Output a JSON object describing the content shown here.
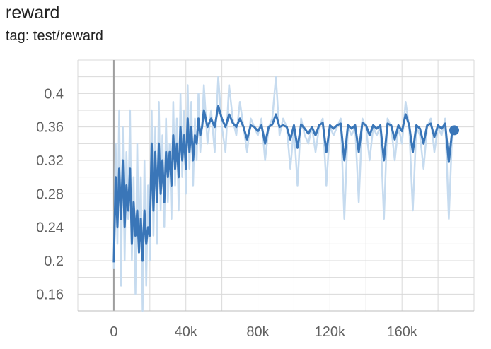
{
  "header": {
    "title": "reward",
    "tag": "tag: test/reward"
  },
  "chart_data": {
    "type": "line",
    "title": "reward",
    "subtitle": "tag: test/reward",
    "xlabel": "",
    "ylabel": "",
    "xlim": [
      -20000,
      200000
    ],
    "ylim": [
      0.14,
      0.44
    ],
    "x_ticks": [
      0,
      40000,
      80000,
      120000,
      160000
    ],
    "x_tick_labels": [
      "0",
      "40k",
      "80k",
      "120k",
      "160k"
    ],
    "y_ticks": [
      0.16,
      0.2,
      0.24,
      0.28,
      0.32,
      0.36,
      0.4
    ],
    "y_tick_labels": [
      "0.16",
      "0.2",
      "0.24",
      "0.28",
      "0.32",
      "0.36",
      "0.4"
    ],
    "grid": true,
    "colors": {
      "smoothed": "#3a76b8",
      "raw": "#c6dbef",
      "grid": "#d9d9d9",
      "zero_line": "#9e9e9e"
    },
    "series": [
      {
        "role": "raw",
        "x": [
          0,
          1000,
          2000,
          3000,
          4000,
          5000,
          6000,
          7000,
          8000,
          9000,
          10000,
          11000,
          12000,
          13000,
          14000,
          15000,
          16000,
          17000,
          18000,
          19000,
          20000,
          21000,
          22000,
          23000,
          24000,
          25000,
          26000,
          27000,
          28000,
          29000,
          30000,
          31000,
          32000,
          33000,
          34000,
          35000,
          36000,
          37000,
          38000,
          39000,
          40000,
          41000,
          42000,
          43000,
          44000,
          45000,
          46000,
          47000,
          48000,
          49000,
          50000,
          52000,
          54000,
          56000,
          58000,
          60000,
          62000,
          64000,
          66000,
          68000,
          70000,
          72000,
          74000,
          76000,
          78000,
          80000,
          82000,
          84000,
          86000,
          88000,
          90000,
          92000,
          94000,
          96000,
          98000,
          100000,
          102000,
          104000,
          106000,
          108000,
          110000,
          112000,
          114000,
          116000,
          118000,
          120000,
          122000,
          124000,
          126000,
          128000,
          130000,
          132000,
          134000,
          136000,
          138000,
          140000,
          142000,
          144000,
          146000,
          148000,
          150000,
          152000,
          154000,
          156000,
          158000,
          160000,
          162000,
          164000,
          166000,
          168000,
          170000,
          172000,
          174000,
          176000,
          178000,
          180000,
          182000,
          184000,
          186000,
          188000,
          189000
        ],
        "y": [
          0.19,
          0.34,
          0.22,
          0.38,
          0.17,
          0.36,
          0.2,
          0.33,
          0.25,
          0.38,
          0.2,
          0.3,
          0.16,
          0.34,
          0.21,
          0.3,
          0.14,
          0.32,
          0.17,
          0.29,
          0.2,
          0.38,
          0.23,
          0.36,
          0.22,
          0.39,
          0.26,
          0.35,
          0.24,
          0.37,
          0.27,
          0.34,
          0.25,
          0.39,
          0.29,
          0.37,
          0.26,
          0.4,
          0.3,
          0.38,
          0.28,
          0.41,
          0.31,
          0.39,
          0.29,
          0.37,
          0.32,
          0.4,
          0.33,
          0.36,
          0.41,
          0.34,
          0.38,
          0.33,
          0.42,
          0.36,
          0.33,
          0.41,
          0.37,
          0.35,
          0.39,
          0.36,
          0.33,
          0.37,
          0.36,
          0.35,
          0.37,
          0.32,
          0.36,
          0.37,
          0.42,
          0.35,
          0.37,
          0.36,
          0.31,
          0.36,
          0.29,
          0.37,
          0.35,
          0.34,
          0.36,
          0.33,
          0.36,
          0.37,
          0.29,
          0.36,
          0.35,
          0.36,
          0.37,
          0.25,
          0.36,
          0.35,
          0.36,
          0.27,
          0.37,
          0.36,
          0.32,
          0.36,
          0.35,
          0.36,
          0.25,
          0.37,
          0.36,
          0.32,
          0.36,
          0.34,
          0.39,
          0.36,
          0.26,
          0.36,
          0.35,
          0.31,
          0.36,
          0.37,
          0.33,
          0.36,
          0.35,
          0.37,
          0.25,
          0.36,
          0.36
        ]
      },
      {
        "role": "smoothed",
        "x": [
          0,
          1000,
          2000,
          3000,
          4000,
          5000,
          6000,
          7000,
          8000,
          9000,
          10000,
          11000,
          12000,
          13000,
          14000,
          15000,
          16000,
          17000,
          18000,
          19000,
          20000,
          21000,
          22000,
          23000,
          24000,
          25000,
          26000,
          27000,
          28000,
          29000,
          30000,
          31000,
          32000,
          33000,
          34000,
          35000,
          36000,
          37000,
          38000,
          39000,
          40000,
          41000,
          42000,
          43000,
          44000,
          45000,
          46000,
          47000,
          48000,
          49000,
          50000,
          52000,
          54000,
          56000,
          58000,
          60000,
          62000,
          64000,
          66000,
          68000,
          70000,
          72000,
          74000,
          76000,
          78000,
          80000,
          82000,
          84000,
          86000,
          88000,
          90000,
          92000,
          94000,
          96000,
          98000,
          100000,
          102000,
          104000,
          106000,
          108000,
          110000,
          112000,
          114000,
          116000,
          118000,
          120000,
          122000,
          124000,
          126000,
          128000,
          130000,
          132000,
          134000,
          136000,
          138000,
          140000,
          142000,
          144000,
          146000,
          148000,
          150000,
          152000,
          154000,
          156000,
          158000,
          160000,
          162000,
          164000,
          166000,
          168000,
          170000,
          172000,
          174000,
          176000,
          178000,
          180000,
          182000,
          184000,
          186000,
          188000,
          189000
        ],
        "y": [
          0.198,
          0.3,
          0.24,
          0.31,
          0.25,
          0.32,
          0.24,
          0.29,
          0.26,
          0.31,
          0.22,
          0.27,
          0.23,
          0.26,
          0.21,
          0.25,
          0.2,
          0.26,
          0.22,
          0.24,
          0.23,
          0.34,
          0.26,
          0.33,
          0.27,
          0.34,
          0.28,
          0.32,
          0.27,
          0.33,
          0.3,
          0.33,
          0.29,
          0.35,
          0.31,
          0.34,
          0.3,
          0.36,
          0.32,
          0.35,
          0.31,
          0.37,
          0.33,
          0.36,
          0.32,
          0.35,
          0.34,
          0.37,
          0.35,
          0.36,
          0.38,
          0.36,
          0.37,
          0.36,
          0.385,
          0.37,
          0.36,
          0.375,
          0.365,
          0.36,
          0.37,
          0.36,
          0.345,
          0.362,
          0.36,
          0.355,
          0.362,
          0.34,
          0.36,
          0.363,
          0.375,
          0.36,
          0.362,
          0.36,
          0.345,
          0.362,
          0.335,
          0.363,
          0.358,
          0.352,
          0.36,
          0.35,
          0.362,
          0.365,
          0.33,
          0.362,
          0.358,
          0.362,
          0.364,
          0.32,
          0.362,
          0.358,
          0.362,
          0.33,
          0.365,
          0.362,
          0.35,
          0.362,
          0.358,
          0.362,
          0.32,
          0.364,
          0.362,
          0.345,
          0.362,
          0.355,
          0.375,
          0.362,
          0.33,
          0.362,
          0.358,
          0.34,
          0.362,
          0.364,
          0.348,
          0.362,
          0.358,
          0.364,
          0.318,
          0.358,
          0.356
        ]
      }
    ]
  }
}
